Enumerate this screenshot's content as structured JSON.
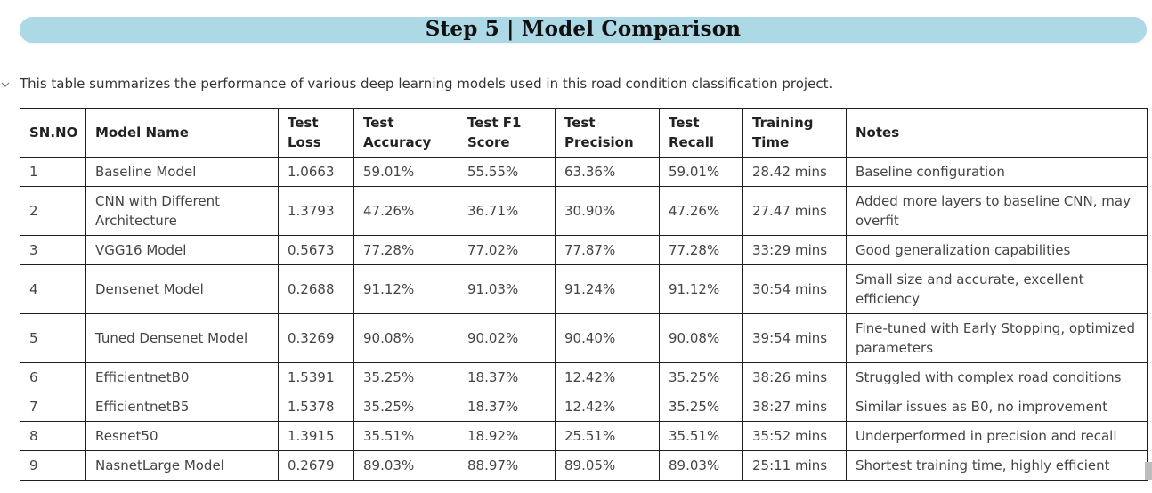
{
  "header": {
    "title": "Step 5 | Model Comparison"
  },
  "intro": {
    "text": "This table summarizes the performance of various deep learning models used in this road condition classification project."
  },
  "table": {
    "columns": [
      "SN.NO",
      "Model Name",
      "Test Loss",
      "Test Accuracy",
      "Test F1 Score",
      "Test Precision",
      "Test Recall",
      "Training Time",
      "Notes"
    ],
    "rows": [
      [
        "1",
        "Baseline Model",
        "1.0663",
        "59.01%",
        "55.55%",
        "63.36%",
        "59.01%",
        "28.42 mins",
        "Baseline configuration"
      ],
      [
        "2",
        "CNN with Different Architecture",
        "1.3793",
        "47.26%",
        "36.71%",
        "30.90%",
        "47.26%",
        "27.47 mins",
        "Added more layers to baseline CNN, may overfit"
      ],
      [
        "3",
        "VGG16 Model",
        "0.5673",
        "77.28%",
        "77.02%",
        "77.87%",
        "77.28%",
        "33:29 mins",
        "Good generalization capabilities"
      ],
      [
        "4",
        "Densenet Model",
        "0.2688",
        "91.12%",
        "91.03%",
        "91.24%",
        "91.12%",
        "30:54 mins",
        "Small size and accurate, excellent efficiency"
      ],
      [
        "5",
        "Tuned Densenet Model",
        "0.3269",
        "90.08%",
        "90.02%",
        "90.40%",
        "90.08%",
        "39:54 mins",
        "Fine-tuned with Early Stopping, optimized parameters"
      ],
      [
        "6",
        "EfficientnetB0",
        "1.5391",
        "35.25%",
        "18.37%",
        "12.42%",
        "35.25%",
        "38:26 mins",
        "Struggled with complex road conditions"
      ],
      [
        "7",
        "EfficientnetB5",
        "1.5378",
        "35.25%",
        "18.37%",
        "12.42%",
        "35.25%",
        "38:27 mins",
        "Similar issues as B0, no improvement"
      ],
      [
        "8",
        "Resnet50",
        "1.3915",
        "35.51%",
        "18.92%",
        "25.51%",
        "35.51%",
        "35:52 mins",
        "Underperformed in precision and recall"
      ],
      [
        "9",
        "NasnetLarge Model",
        "0.2679",
        "89.03%",
        "88.97%",
        "89.05%",
        "89.03%",
        "25:11 mins",
        "Shortest training time, highly efficient"
      ]
    ]
  },
  "colors": {
    "banner": "#add8e6",
    "border": "#1f1f1f"
  },
  "icons": {
    "collapse": "chevron-down-icon"
  }
}
